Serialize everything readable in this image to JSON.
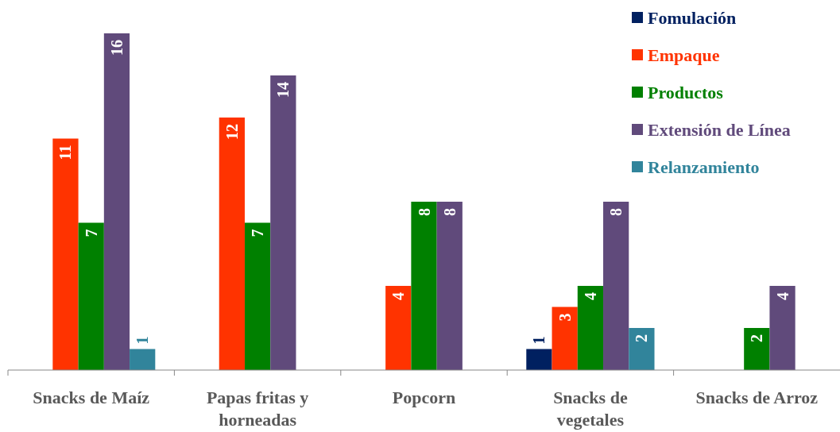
{
  "chart_data": {
    "type": "bar",
    "categories": [
      "Snacks de Maíz",
      "Papas fritas y horneadas",
      "Popcorn",
      "Snacks de vegetales",
      "Snacks de Arroz"
    ],
    "series": [
      {
        "name": "Fomulación",
        "color": "#002060",
        "values": [
          null,
          null,
          null,
          1,
          null
        ]
      },
      {
        "name": "Empaque",
        "color": "#ff3300",
        "values": [
          11,
          12,
          4,
          3,
          null
        ]
      },
      {
        "name": "Productos",
        "color": "#008000",
        "values": [
          7,
          7,
          8,
          4,
          2
        ]
      },
      {
        "name": "Extensión de Línea",
        "color": "#604a7b",
        "values": [
          16,
          14,
          8,
          8,
          4
        ]
      },
      {
        "name": "Relanzamiento",
        "color": "#31849b",
        "values": [
          1,
          null,
          null,
          2,
          null
        ]
      }
    ],
    "data_labels": true,
    "legend": "top right"
  }
}
